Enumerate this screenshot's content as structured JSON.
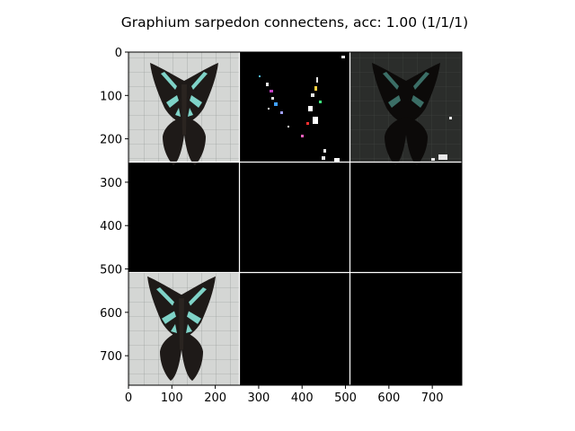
{
  "figure": {
    "title": "Graphium sarpedon connectens, acc: 1.00 (1/1/1)"
  },
  "axes": {
    "x_ticks": [
      "0",
      "100",
      "200",
      "300",
      "400",
      "500",
      "600",
      "700"
    ],
    "y_ticks": [
      "0",
      "100",
      "200",
      "300",
      "400",
      "500",
      "600",
      "700"
    ],
    "x_range": [
      0,
      768
    ],
    "y_range": [
      768,
      0
    ]
  },
  "grid": {
    "rows": 3,
    "cols": 3,
    "cells": [
      {
        "row": 0,
        "col": 0,
        "content": "butterfly-photo-original"
      },
      {
        "row": 0,
        "col": 1,
        "content": "saliency-map"
      },
      {
        "row": 0,
        "col": 2,
        "content": "masked-butterfly-dark"
      },
      {
        "row": 1,
        "col": 0,
        "content": "black"
      },
      {
        "row": 1,
        "col": 1,
        "content": "black"
      },
      {
        "row": 1,
        "col": 2,
        "content": "black"
      },
      {
        "row": 2,
        "col": 0,
        "content": "butterfly-photo-reference"
      },
      {
        "row": 2,
        "col": 1,
        "content": "black"
      },
      {
        "row": 2,
        "col": 2,
        "content": "black"
      }
    ]
  },
  "colors": {
    "wing_black": "#1e1a18",
    "wing_band": "#7fd3c8",
    "background_light": "#d6d8d6",
    "black": "#000000"
  }
}
